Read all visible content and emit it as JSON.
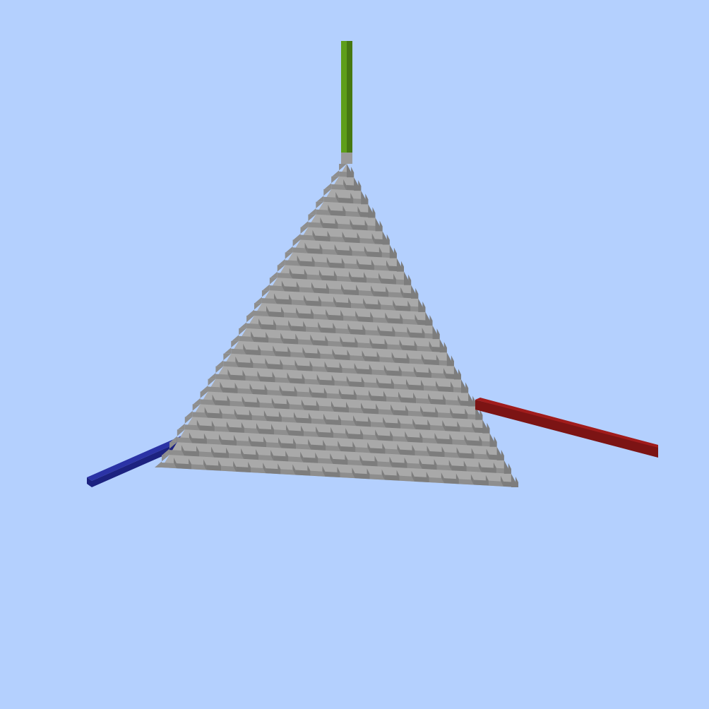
{
  "scene": {
    "sky_color": "#b4d0fe",
    "block_material": "stone",
    "block_top_color": "#a9a9a9",
    "block_left_color": "#8e8e8e",
    "block_right_color": "#7d7d7d",
    "axes": [
      {
        "name": "x-axis",
        "color": "#a11c1c",
        "dark": "#7c1414"
      },
      {
        "name": "y-axis",
        "color": "#5e9e1a",
        "dark": "#467812"
      },
      {
        "name": "z-axis",
        "color": "#2b33a6",
        "dark": "#1c2280"
      }
    ],
    "shape": "stepped triangular plane (x + y + z = n)",
    "steps": 24
  }
}
